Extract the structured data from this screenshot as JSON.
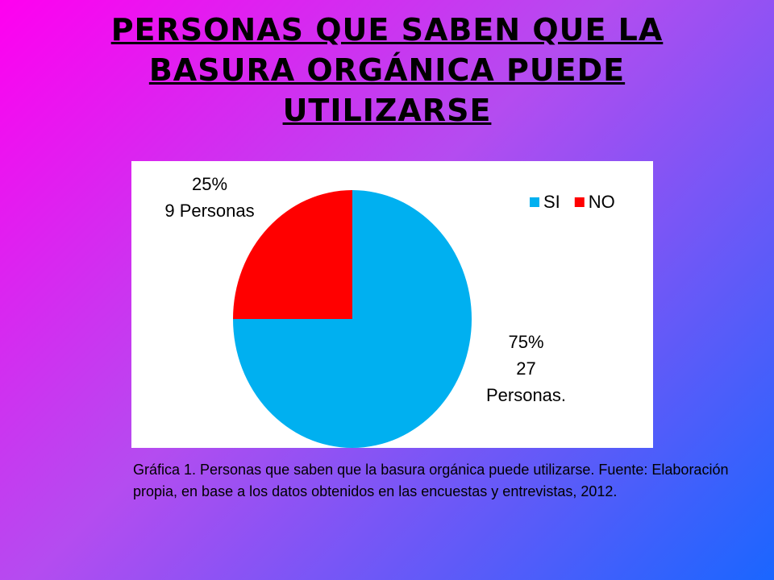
{
  "chart_data": {
    "type": "pie",
    "title": "PERSONAS QUE SABEN QUE LA BASURA ORGÁNICA PUEDE UTILIZARSE",
    "categories": [
      "SI",
      "NO"
    ],
    "values": [
      75,
      25
    ],
    "value_labels": [
      "75%",
      "25%"
    ],
    "count_labels": [
      "27 Personas.",
      "9 Personas"
    ],
    "colors": [
      "#00b0f0",
      "#ff0000"
    ],
    "legend": "top-right",
    "caption": "Gráfica 1. Personas que saben que la basura orgánica puede utilizarse. Fuente: Elaboración propia, en base a los datos obtenidos en las encuestas y entrevistas, 2012."
  }
}
